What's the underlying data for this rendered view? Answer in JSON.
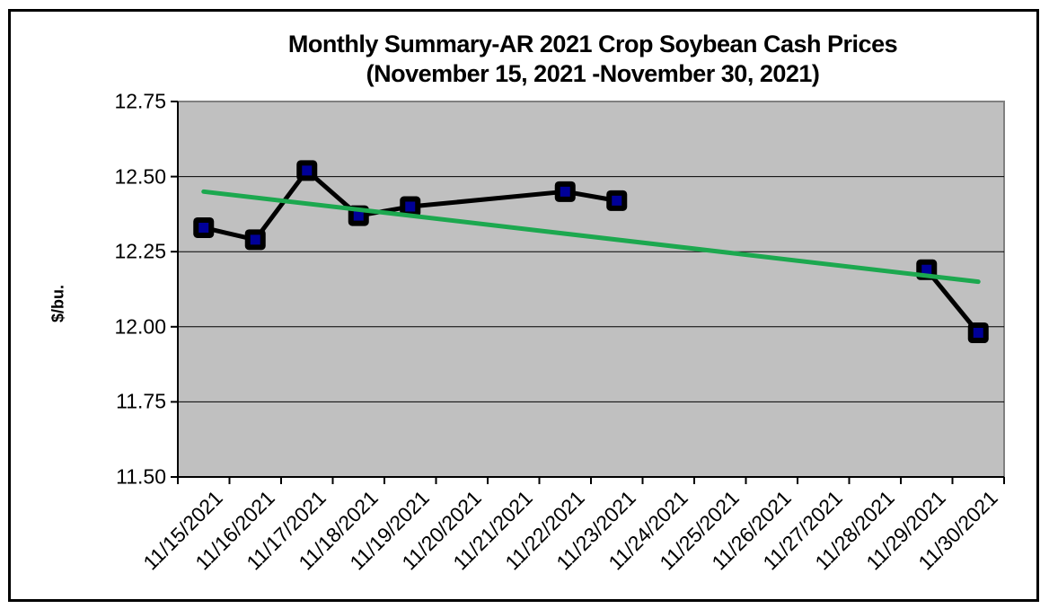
{
  "figure": {
    "background": "#FFFFFF",
    "border_color": "#000000"
  },
  "chart": {
    "title_line1": "Monthly Summary-AR 2021 Crop Soybean Cash Prices",
    "title_line2": "(November 15, 2021 -November 30, 2021)",
    "y_axis_title": "$/bu."
  },
  "chart_data": {
    "type": "line",
    "title": "Monthly Summary-AR 2021 Crop Soybean Cash Prices (November 15, 2021 -November 30, 2021)",
    "xlabel": "",
    "ylabel": "$/bu.",
    "ylim": [
      11.5,
      12.75
    ],
    "ytick_interval": 0.25,
    "yticks": [
      {
        "value": 12.75,
        "label": "12.75"
      },
      {
        "value": 12.5,
        "label": "12.50"
      },
      {
        "value": 12.25,
        "label": "12.25"
      },
      {
        "value": 12.0,
        "label": "12.00"
      },
      {
        "value": 11.75,
        "label": "11.75"
      },
      {
        "value": 11.5,
        "label": "11.50"
      }
    ],
    "categories": [
      "11/15/2021",
      "11/16/2021",
      "11/17/2021",
      "11/18/2021",
      "11/19/2021",
      "11/20/2021",
      "11/21/2021",
      "11/22/2021",
      "11/23/2021",
      "11/24/2021",
      "11/25/2021",
      "11/26/2021",
      "11/27/2021",
      "11/28/2021",
      "11/29/2021",
      "11/30/2021"
    ],
    "grid": true,
    "legend_position": "none",
    "plot_background": "#C0C0C0",
    "plot_border_color": "#808080",
    "gridline_color": "#000000",
    "axis_color": "#000000",
    "series": [
      {
        "name": "AR soybean cash price",
        "type": "line",
        "line_color": "#000000",
        "marker_shape": "square",
        "marker_fill": "#000099",
        "marker_border": "#000000",
        "values": [
          12.33,
          12.29,
          12.52,
          12.37,
          12.4,
          null,
          null,
          12.45,
          12.42,
          null,
          null,
          null,
          null,
          null,
          12.19,
          11.98
        ],
        "drawn_segments": [
          [
            0,
            1,
            2,
            3,
            4,
            7,
            8
          ],
          [
            14,
            15
          ]
        ]
      },
      {
        "name": "linear trendline",
        "type": "trendline",
        "line_color": "#1CA84F",
        "x_span": [
          "11/15/2021",
          "11/30/2021"
        ],
        "start_value": 12.45,
        "end_value": 12.15
      }
    ]
  }
}
